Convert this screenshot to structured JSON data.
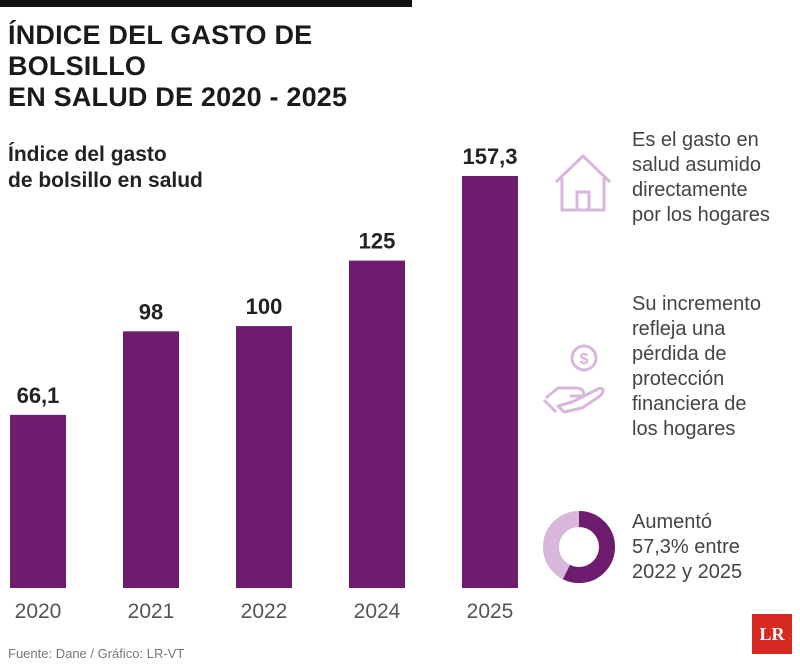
{
  "header": {
    "title_line1": "ÍNDICE DEL GASTO DE BOLSILLO",
    "title_line2": "EN SALUD DE 2020 - 2025"
  },
  "chart_data": {
    "type": "bar",
    "title": "ÍNDICE DEL GASTO DE BOLSILLO EN SALUD DE 2020 - 2025",
    "ylabel_line1": "Índice del gasto",
    "ylabel_line2": "de bolsillo en salud",
    "categories": [
      "2020",
      "2021",
      "2022",
      "2024",
      "2025"
    ],
    "values": [
      66.1,
      98,
      100,
      125,
      157.3
    ],
    "value_labels": [
      "66,1",
      "98",
      "100",
      "125",
      "157,3"
    ],
    "bar_color": "#6e1d6e",
    "grid": false
  },
  "side_notes": [
    {
      "icon": "house-icon",
      "lines": [
        "Es el gasto en",
        "salud asumido",
        "directamente",
        "por los hogares"
      ]
    },
    {
      "icon": "hand-coin-icon",
      "lines": [
        "Su incremento",
        "refleja una",
        "pérdida de",
        "protección",
        "financiera de",
        "los hogares"
      ]
    },
    {
      "icon": "donut-icon",
      "lines": [
        "Aumentó",
        "57,3% entre",
        "2022 y 2025"
      ],
      "donut_fraction": 0.573
    }
  ],
  "colors": {
    "accent": "#6e1d6e",
    "icon_light": "#d9b6dc"
  },
  "footer": {
    "source": "Fuente: Dane / Gráfico: LR-VT",
    "logo": "LR"
  }
}
